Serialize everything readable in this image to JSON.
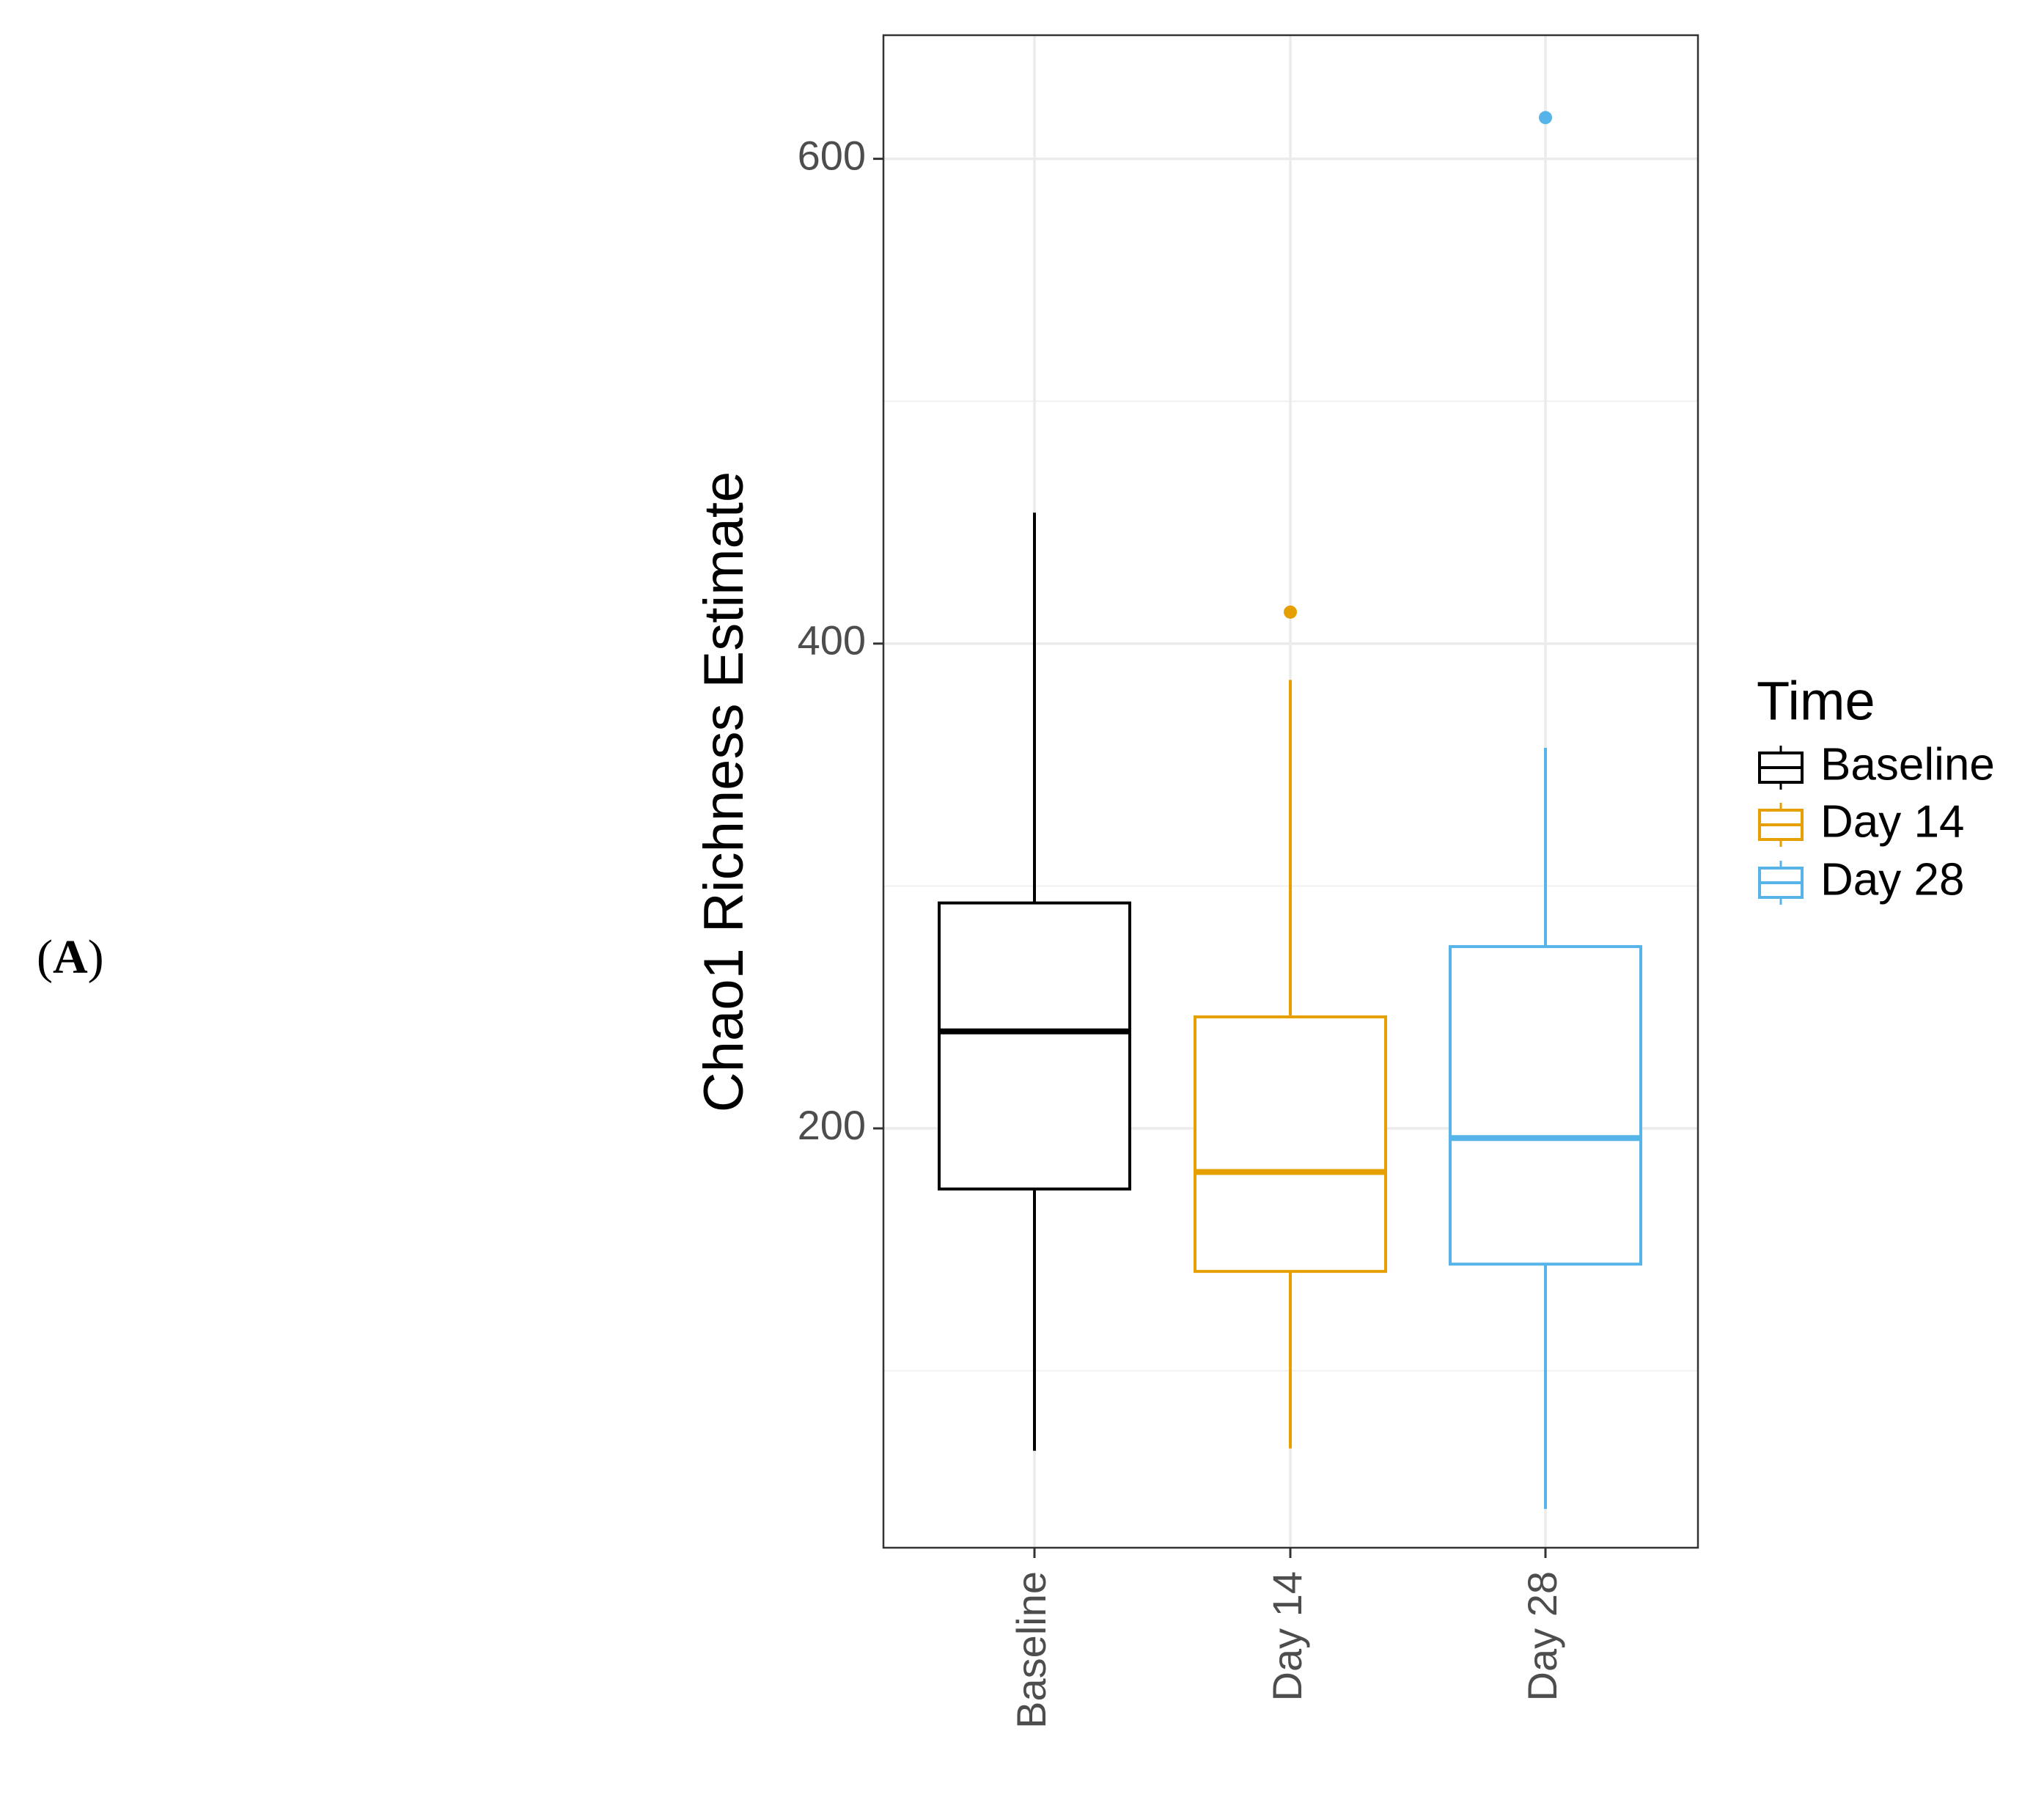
{
  "panel_label": {
    "open": "(",
    "letter": "A",
    "close": ")"
  },
  "chart_data": {
    "type": "boxplot",
    "ylabel": "Chao1 Richness Estimate",
    "xlabel": "",
    "categories": [
      "Baseline",
      "Day 14",
      "Day 28"
    ],
    "ylim": [
      27,
      651
    ],
    "yticks": [
      200,
      400,
      600
    ],
    "minor_gridlines": [
      100,
      300,
      500
    ],
    "grid": true,
    "legend": {
      "title": "Time",
      "position": "right",
      "entries": [
        "Baseline",
        "Day 14",
        "Day 28"
      ]
    },
    "series": [
      {
        "name": "Baseline",
        "color": "#000000",
        "whisker_low": 67,
        "q1": 175,
        "median": 240,
        "q3": 293,
        "whisker_high": 454,
        "outliers": []
      },
      {
        "name": "Day 14",
        "color": "#E69F00",
        "whisker_low": 68,
        "q1": 141,
        "median": 182,
        "q3": 246,
        "whisker_high": 385,
        "outliers": [
          413
        ]
      },
      {
        "name": "Day 28",
        "color": "#56B4E9",
        "whisker_low": 43,
        "q1": 144,
        "median": 196,
        "q3": 275,
        "whisker_high": 357,
        "outliers": [
          617
        ]
      }
    ]
  }
}
